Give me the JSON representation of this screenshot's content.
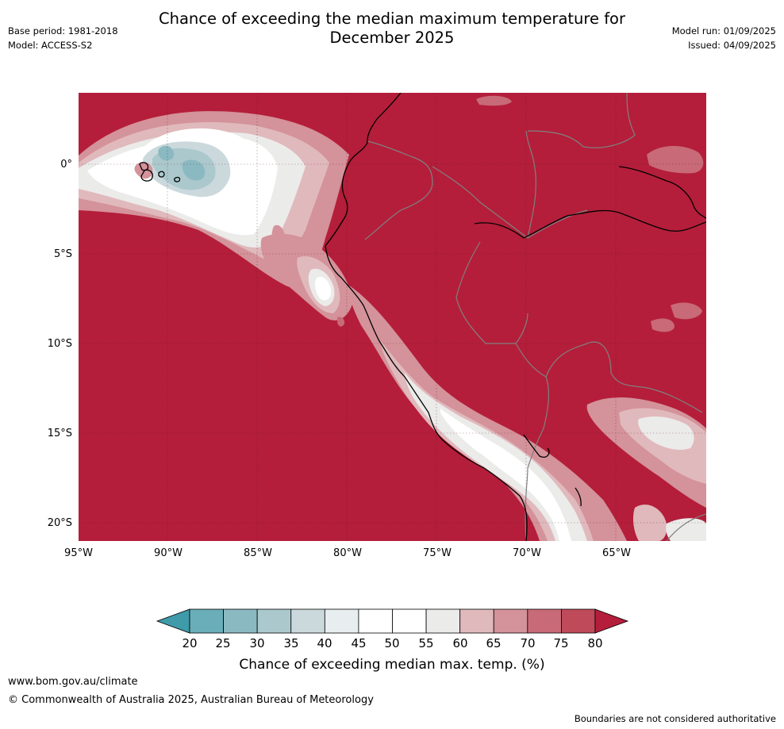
{
  "header": {
    "title": "Chance of exceeding the median maximum temperature for\nDecember 2025",
    "base_period": "Base period: 1981-2018",
    "model": "Model: ACCESS-S2",
    "model_run": "Model run: 01/09/2025",
    "issued": "Issued: 04/09/2025"
  },
  "map": {
    "lat_ticks": [
      "0°",
      "5°S",
      "10°S",
      "15°S",
      "20°S"
    ],
    "lon_ticks": [
      "95°W",
      "90°W",
      "85°W",
      "80°W",
      "75°W",
      "70°W",
      "65°W"
    ],
    "colors": {
      "background": "#b41e3a",
      "coast": "#000000",
      "border": "#808080"
    }
  },
  "colorbar": {
    "labels": [
      "20",
      "25",
      "30",
      "35",
      "40",
      "45",
      "50",
      "55",
      "60",
      "65",
      "70",
      "75",
      "80"
    ],
    "colors": [
      "#3f9aaa",
      "#6aaeba",
      "#8ab9c1",
      "#abc8cd",
      "#cbd9dd",
      "#e8eef0",
      "#ffffff",
      "#ffffff",
      "#ebebea",
      "#e0b9bc",
      "#d4929a",
      "#c86a77",
      "#be4a5a",
      "#b41e3a"
    ],
    "title": "Chance of exceeding median max. temp. (%)"
  },
  "footer": {
    "url": "www.bom.gov.au/climate",
    "copyright": "© Commonwealth of Australia 2025, Australian Bureau of Meteorology",
    "note": "Boundaries are not considered authoritative"
  }
}
